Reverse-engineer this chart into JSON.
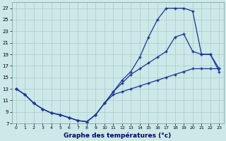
{
  "xlabel": "Graphe des températures (°c)",
  "background_color": "#cce8e8",
  "grid_color": "#aacaca",
  "line_color": "#1a3595",
  "xlim": [
    -0.5,
    23.5
  ],
  "ylim": [
    7,
    28
  ],
  "xticks": [
    0,
    1,
    2,
    3,
    4,
    5,
    6,
    7,
    8,
    9,
    10,
    11,
    12,
    13,
    14,
    15,
    16,
    17,
    18,
    19,
    20,
    21,
    22,
    23
  ],
  "yticks": [
    7,
    9,
    11,
    13,
    15,
    17,
    19,
    21,
    23,
    25,
    27
  ],
  "curve1_x": [
    0,
    1,
    2,
    3,
    4,
    5,
    6,
    7,
    8,
    9,
    10,
    11,
    12,
    13,
    14,
    15,
    16,
    17,
    18,
    19,
    20,
    21,
    22,
    23
  ],
  "curve1_y": [
    13,
    12,
    10.5,
    9.5,
    8.8,
    8.5,
    8.0,
    7.5,
    7.3,
    8.5,
    10.5,
    12.5,
    14.5,
    16.0,
    18.5,
    22.0,
    25.0,
    27.0,
    27.0,
    27.0,
    26.5,
    19.0,
    19.0,
    16.0
  ],
  "curve2_x": [
    0,
    1,
    2,
    3,
    4,
    5,
    6,
    7,
    8,
    9,
    10,
    11,
    12,
    13,
    14,
    15,
    16,
    17,
    18,
    19,
    20,
    21,
    22,
    23
  ],
  "curve2_y": [
    13,
    12,
    10.5,
    9.5,
    8.8,
    8.5,
    8.0,
    7.5,
    7.3,
    8.5,
    10.5,
    12.5,
    14.0,
    15.5,
    16.5,
    17.5,
    18.5,
    19.5,
    22.0,
    22.5,
    19.5,
    19.0,
    19.0,
    16.5
  ],
  "curve3_x": [
    0,
    1,
    2,
    3,
    4,
    5,
    6,
    7,
    8,
    9,
    10,
    11,
    12,
    13,
    14,
    15,
    16,
    17,
    18,
    19,
    20,
    21,
    22,
    23
  ],
  "curve3_y": [
    13,
    12,
    10.5,
    9.5,
    8.8,
    8.5,
    8.0,
    7.5,
    7.3,
    8.5,
    10.5,
    12.0,
    12.5,
    13.0,
    13.5,
    14.0,
    14.5,
    15.0,
    15.5,
    16.0,
    16.5,
    16.5,
    16.5,
    16.5
  ]
}
